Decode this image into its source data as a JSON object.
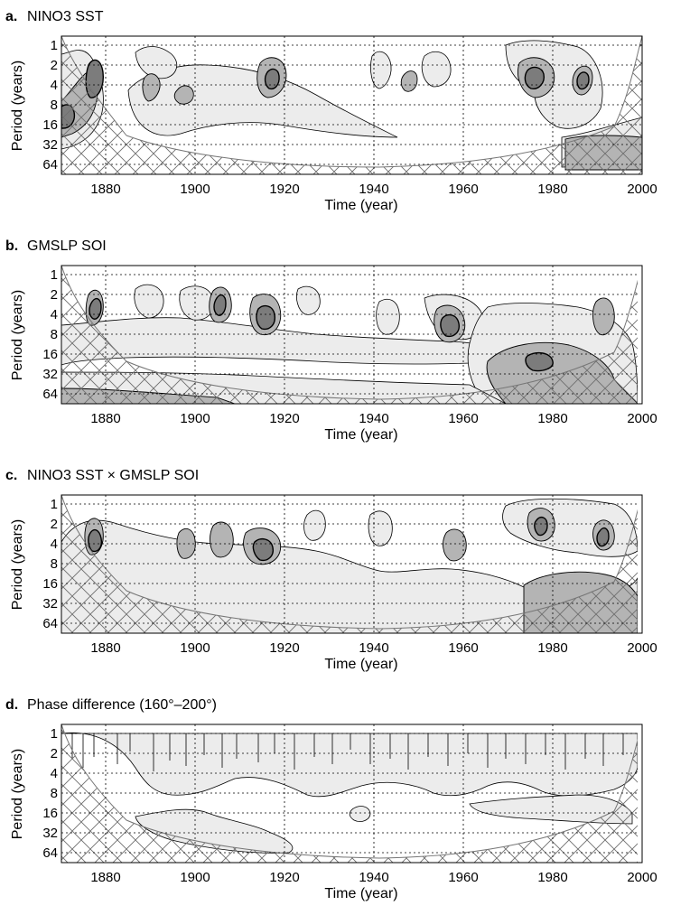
{
  "figure": {
    "panels": [
      {
        "label": "a.",
        "title": "NINO3 SST",
        "ylabel": "Period (years)",
        "xlabel": "Time (year)",
        "xticks": [
          1880,
          1900,
          1920,
          1940,
          1960,
          1980,
          2000
        ],
        "yticks": [
          1,
          2,
          4,
          8,
          16,
          32,
          64
        ],
        "data_end": 1997
      },
      {
        "label": "b.",
        "title": "GMSLP SOI",
        "ylabel": "Period (years)",
        "xlabel": "Time (year)",
        "xticks": [
          1880,
          1900,
          1920,
          1940,
          1960,
          1980,
          2000
        ],
        "yticks": [
          1,
          2,
          4,
          8,
          16,
          32,
          64
        ],
        "data_end": 1995
      },
      {
        "label": "c.",
        "title": "NINO3 SST  × GMSLP SOI",
        "ylabel": "Period (years)",
        "xlabel": "Time (year)",
        "xticks": [
          1880,
          1900,
          1920,
          1940,
          1960,
          1980,
          2000
        ],
        "yticks": [
          1,
          2,
          4,
          8,
          16,
          32,
          64
        ],
        "data_end": 1995
      },
      {
        "label": "d.",
        "title": "Phase difference (160°–200°)",
        "ylabel": "Period (years)",
        "xlabel": "Time (year)",
        "xticks": [
          1880,
          1900,
          1920,
          1940,
          1960,
          1980,
          2000
        ],
        "yticks": [
          1,
          2,
          4,
          8,
          16,
          32,
          64
        ],
        "data_end": 1995
      }
    ]
  },
  "chart_data": [
    {
      "type": "heatmap",
      "title": "NINO3 SST",
      "xlabel": "Time (year)",
      "ylabel": "Period (years)",
      "xlim": [
        1870,
        2000
      ],
      "ylim": [
        1,
        64
      ],
      "yscale": "log2",
      "y_reversed": true,
      "grid": true,
      "cone_of_influence": "cross-hatched",
      "colors": {
        "level1": "#ececec",
        "level2": "#b4b4b4",
        "level3": "#7c7c7c"
      },
      "hotspots": [
        {
          "x": 1876,
          "period": 4,
          "level": 3
        },
        {
          "x": 1873,
          "period": 14,
          "level": 3
        },
        {
          "x": 1900,
          "period": 10,
          "level": 2
        },
        {
          "x": 1916,
          "period": 5,
          "level": 3
        },
        {
          "x": 1941,
          "period": 4,
          "level": 2
        },
        {
          "x": 1951,
          "period": 4,
          "level": 1
        },
        {
          "x": 1972,
          "period": 4,
          "level": 3
        },
        {
          "x": 1985,
          "period": 4,
          "level": 3
        },
        {
          "x": 1990,
          "period": 40,
          "level": 2
        }
      ]
    },
    {
      "type": "heatmap",
      "title": "GMSLP SOI",
      "xlabel": "Time (year)",
      "ylabel": "Period (years)",
      "xlim": [
        1870,
        2000
      ],
      "ylim": [
        1,
        64
      ],
      "yscale": "log2",
      "y_reversed": true,
      "grid": true,
      "cone_of_influence": "cross-hatched",
      "colors": {
        "level1": "#ececec",
        "level2": "#b4b4b4",
        "level3": "#7c7c7c"
      },
      "hotspots": [
        {
          "x": 1878,
          "period": 4,
          "level": 3
        },
        {
          "x": 1905,
          "period": 4,
          "level": 3
        },
        {
          "x": 1916,
          "period": 4,
          "level": 3
        },
        {
          "x": 1941,
          "period": 5,
          "level": 2
        },
        {
          "x": 1956,
          "period": 6,
          "level": 3
        },
        {
          "x": 1975,
          "period": 20,
          "level": 3
        },
        {
          "x": 1988,
          "period": 4,
          "level": 2
        }
      ]
    },
    {
      "type": "heatmap",
      "title": "NINO3 SST  × GMSLP SOI",
      "xlabel": "Time (year)",
      "ylabel": "Period (years)",
      "xlim": [
        1870,
        2000
      ],
      "ylim": [
        1,
        64
      ],
      "yscale": "log2",
      "y_reversed": true,
      "grid": true,
      "cone_of_influence": "cross-hatched",
      "colors": {
        "level1": "#ececec",
        "level2": "#b4b4b4",
        "level3": "#7c7c7c"
      },
      "hotspots": [
        {
          "x": 1877,
          "period": 4,
          "level": 3
        },
        {
          "x": 1905,
          "period": 4,
          "level": 2
        },
        {
          "x": 1915,
          "period": 5,
          "level": 3
        },
        {
          "x": 1940,
          "period": 4,
          "level": 2
        },
        {
          "x": 1958,
          "period": 5,
          "level": 2
        },
        {
          "x": 1975,
          "period": 3,
          "level": 3
        },
        {
          "x": 1985,
          "period": 4,
          "level": 3
        },
        {
          "x": 1985,
          "period": 40,
          "level": 2
        }
      ]
    },
    {
      "type": "heatmap",
      "title": "Phase difference (160°–200°)",
      "xlabel": "Time (year)",
      "ylabel": "Period (years)",
      "xlim": [
        1870,
        2000
      ],
      "ylim": [
        1,
        64
      ],
      "yscale": "log2",
      "y_reversed": true,
      "grid": true,
      "cone_of_influence": "cross-hatched",
      "colors": {
        "level1": "#ececec"
      },
      "hotspots": [
        {
          "x": 1880,
          "period": 3,
          "level": 1
        },
        {
          "x": 1905,
          "period": 40,
          "level": 1
        },
        {
          "x": 1920,
          "period": 4,
          "level": 1
        },
        {
          "x": 1960,
          "period": 3,
          "level": 1
        },
        {
          "x": 1975,
          "period": 14,
          "level": 1
        }
      ]
    }
  ]
}
